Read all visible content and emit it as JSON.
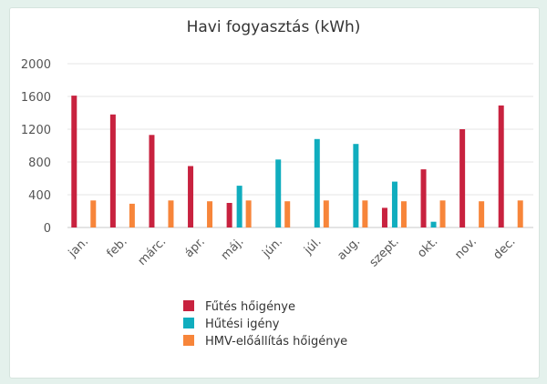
{
  "chart_data": {
    "type": "bar",
    "title": "Havi fogyasztás (kWh)",
    "xlabel": "",
    "ylabel": "",
    "ylim": [
      0,
      2000
    ],
    "yticks": [
      0,
      400,
      800,
      1200,
      1600,
      2000
    ],
    "categories": [
      "jan.",
      "feb.",
      "márc.",
      "ápr.",
      "máj.",
      "jún.",
      "júl.",
      "aug.",
      "szept.",
      "okt.",
      "nov.",
      "dec."
    ],
    "series": [
      {
        "name": "Fűtés hőigénye",
        "color": "#c8223f",
        "values": [
          1610,
          1380,
          1130,
          750,
          300,
          0,
          0,
          0,
          240,
          710,
          1200,
          1490
        ]
      },
      {
        "name": "Hűtési igény",
        "color": "#10adbe",
        "values": [
          0,
          0,
          0,
          0,
          510,
          830,
          1080,
          1020,
          560,
          70,
          0,
          0
        ]
      },
      {
        "name": "HMV-előállítás hőigénye",
        "color": "#f7853a",
        "values": [
          330,
          290,
          330,
          320,
          330,
          320,
          330,
          330,
          320,
          330,
          320,
          330
        ]
      }
    ],
    "legend_position": "bottom-center",
    "grid": true
  }
}
